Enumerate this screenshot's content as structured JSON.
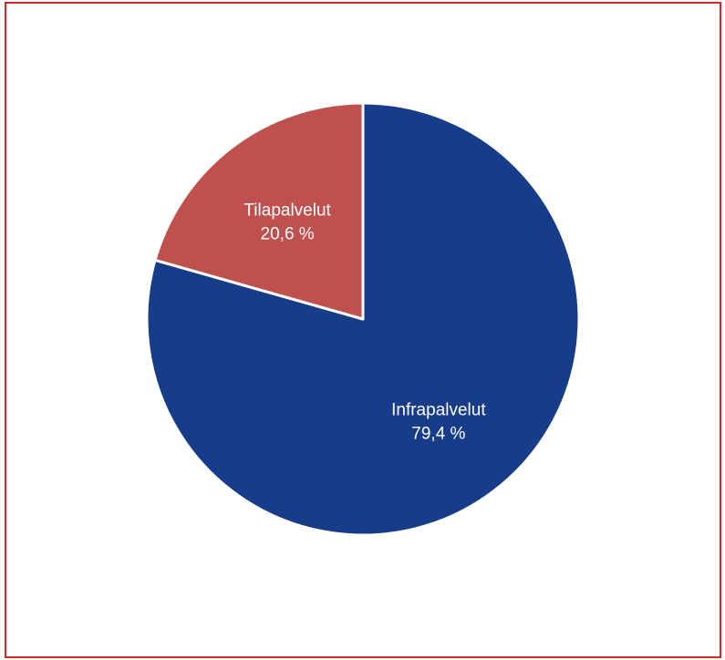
{
  "colors": {
    "frame_border": "#d42a2a",
    "background": "#ffffff",
    "slice_separator": "#ffffff"
  },
  "chart_data": {
    "type": "pie",
    "start": "12 o'clock",
    "direction": "clockwise",
    "legend": "none",
    "slices": [
      {
        "label": "Infrapalvelut",
        "value": 79.4,
        "value_label": "79,4 %",
        "color": "#173c8a"
      },
      {
        "label": "Tilapalvelut",
        "value": 20.6,
        "value_label": "20,6 %",
        "color": "#c0504d"
      }
    ]
  }
}
